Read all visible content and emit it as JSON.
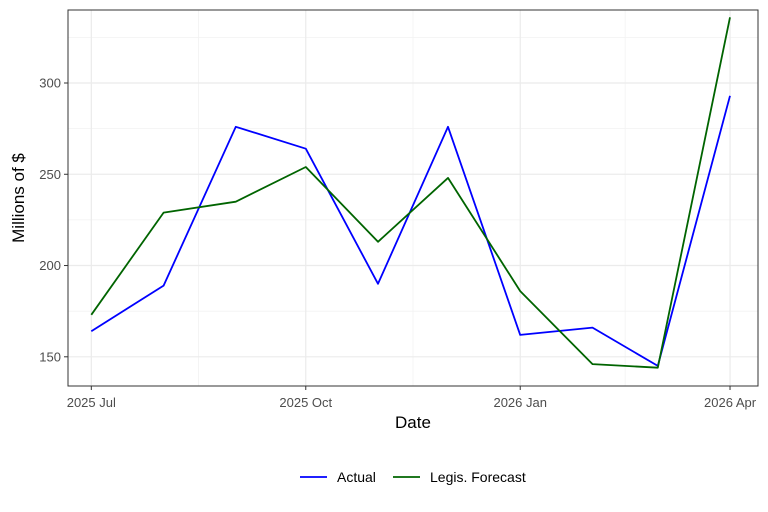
{
  "chart_data": {
    "type": "line",
    "xlabel": "Date",
    "ylabel": "Millions of $",
    "x_ticks": [
      "2025 Jul",
      "2025 Oct",
      "2026 Jan",
      "2026 Apr"
    ],
    "y_ticks": [
      150,
      200,
      250,
      300
    ],
    "ylim": [
      134,
      340
    ],
    "xlim": [
      "2025-06-21",
      "2026-04-13"
    ],
    "grid": true,
    "legend_position": "bottom",
    "x": [
      "2025-07-01",
      "2025-08-01",
      "2025-09-01",
      "2025-10-01",
      "2025-11-01",
      "2025-12-01",
      "2026-01-01",
      "2026-02-01",
      "2026-03-01",
      "2026-04-01"
    ],
    "series": [
      {
        "name": "Actual",
        "color": "#0000ff",
        "values": [
          164,
          189,
          276,
          264,
          190,
          276,
          162,
          166,
          145,
          293
        ]
      },
      {
        "name": "Legis. Forecast",
        "color": "#006400",
        "values": [
          173,
          229,
          235,
          254,
          213,
          248,
          186,
          146,
          144,
          336
        ]
      }
    ]
  }
}
